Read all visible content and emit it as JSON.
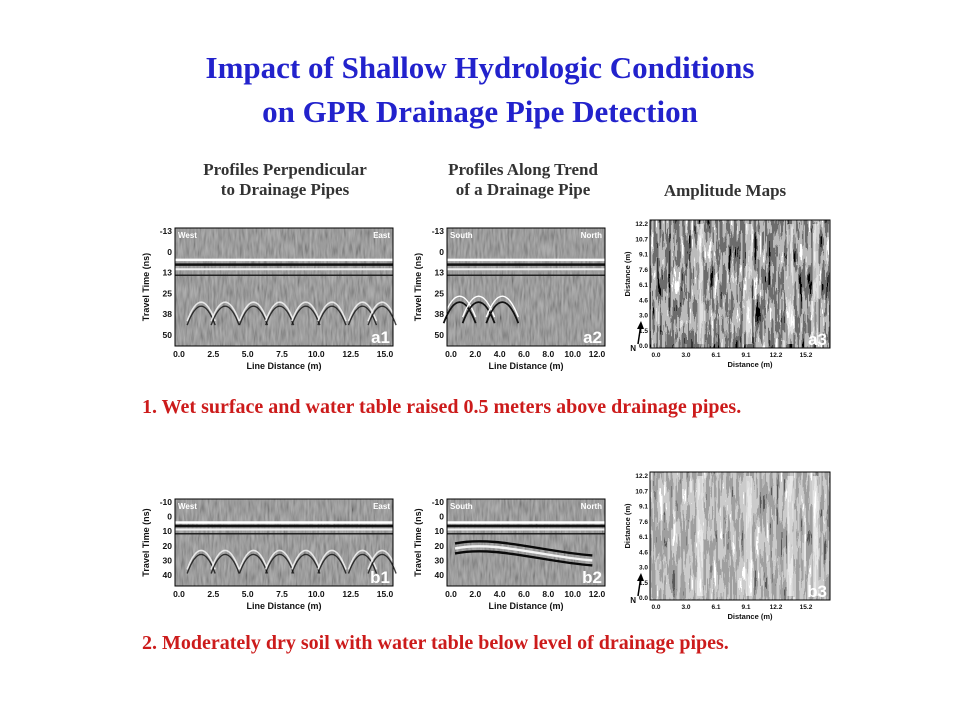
{
  "title": {
    "line1": "Impact of Shallow Hydrologic Conditions",
    "line2": "on GPR Drainage Pipe Detection"
  },
  "column_headers": {
    "perpendicular": [
      "Profiles Perpendicular",
      "to Drainage Pipes"
    ],
    "along": [
      "Profiles Along Trend",
      "of a Drainage Pipe"
    ],
    "maps": "Amplitude Maps"
  },
  "captions": {
    "row1": "1.  Wet surface and water table raised 0.5 meters above drainage pipes.",
    "row2": "2.  Moderately dry soil with water table below level of drainage pipes."
  },
  "rows": [
    {
      "perpendicular": {
        "panel_label": "a1",
        "left_label": "West",
        "right_label": "East",
        "y_axis_label": "Travel Time (ns)",
        "y_ticks": [
          "-13",
          "0",
          "13",
          "25",
          "38",
          "50"
        ],
        "x_axis_label": "Line Distance (m)",
        "x_ticks": [
          "0.0",
          "2.5",
          "5.0",
          "7.5",
          "10.0",
          "12.5",
          "15.0"
        ]
      },
      "along": {
        "panel_label": "a2",
        "left_label": "South",
        "right_label": "North",
        "y_axis_label": "Travel Time (ns)",
        "y_ticks": [
          "-13",
          "0",
          "13",
          "25",
          "38",
          "50"
        ],
        "x_axis_label": "Line Distance (m)",
        "x_ticks": [
          "0.0",
          "2.0",
          "4.0",
          "6.0",
          "8.0",
          "10.0",
          "12.0"
        ]
      },
      "map": {
        "panel_label": "a3",
        "north_label": "N",
        "y_axis_label": "Distance (m)",
        "y_ticks": [
          "12.2",
          "10.7",
          "9.1",
          "7.6",
          "6.1",
          "4.6",
          "3.0",
          "1.5",
          "0.0"
        ],
        "x_axis_label": "Distance (m)",
        "x_ticks": [
          "0.0",
          "3.0",
          "6.1",
          "9.1",
          "12.2",
          "15.2"
        ]
      }
    },
    {
      "perpendicular": {
        "panel_label": "b1",
        "left_label": "West",
        "right_label": "East",
        "y_axis_label": "Travel Time (ns)",
        "y_ticks": [
          "-10",
          "0",
          "10",
          "20",
          "30",
          "40"
        ],
        "x_axis_label": "Line Distance (m)",
        "x_ticks": [
          "0.0",
          "2.5",
          "5.0",
          "7.5",
          "10.0",
          "12.5",
          "15.0"
        ]
      },
      "along": {
        "panel_label": "b2",
        "left_label": "South",
        "right_label": "North",
        "y_axis_label": "Travel Time (ns)",
        "y_ticks": [
          "-10",
          "0",
          "10",
          "20",
          "30",
          "40"
        ],
        "x_axis_label": "Line Distance (m)",
        "x_ticks": [
          "0.0",
          "2.0",
          "4.0",
          "6.0",
          "8.0",
          "10.0",
          "12.0"
        ]
      },
      "map": {
        "panel_label": "b3",
        "north_label": "N",
        "y_axis_label": "Distance (m)",
        "y_ticks": [
          "12.2",
          "10.7",
          "9.1",
          "7.6",
          "6.1",
          "4.6",
          "3.0",
          "1.5",
          "0.0"
        ],
        "x_axis_label": "Distance (m)",
        "x_ticks": [
          "0.0",
          "3.0",
          "6.1",
          "9.1",
          "12.2",
          "15.2"
        ]
      }
    }
  ]
}
